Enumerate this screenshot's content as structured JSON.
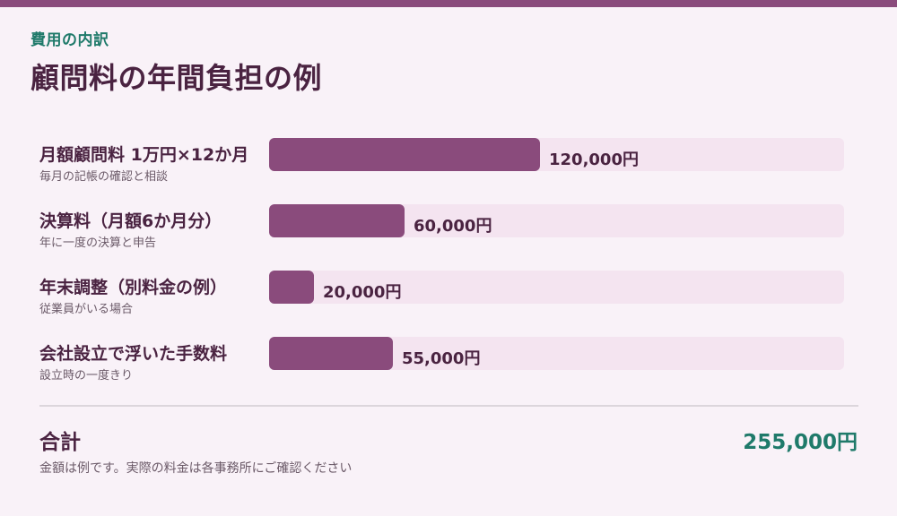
{
  "header": {
    "eyebrow": "費用の内訳",
    "title": "顧問料の年間負担の例"
  },
  "colors": {
    "accent": "#8a4b7c",
    "track": "#f4e4f0",
    "total": "#1f7a6a"
  },
  "chart_data": {
    "type": "bar",
    "orientation": "horizontal",
    "title": "顧問料の年間負担の例",
    "unit": "円",
    "xlim": [
      0,
      255000
    ],
    "categories": [
      "月額顧問料 1万円×12か月",
      "決算料（月額6か月分）",
      "年末調整（別料金の例）",
      "会社設立で浮いた手数料"
    ],
    "descriptions": [
      "毎月の記帳の確認と相談",
      "年に一度の決算と申告",
      "従業員がいる場合",
      "設立時の一度きり"
    ],
    "values": [
      120000,
      60000,
      20000,
      55000
    ],
    "value_labels": [
      "120,000円",
      "60,000円",
      "20,000円",
      "55,000円"
    ],
    "grid": false,
    "legend": "none"
  },
  "summary": {
    "total_label": "合計",
    "total_value": "255,000円",
    "note": "金額は例です。実際の料金は各事務所にご確認ください"
  }
}
